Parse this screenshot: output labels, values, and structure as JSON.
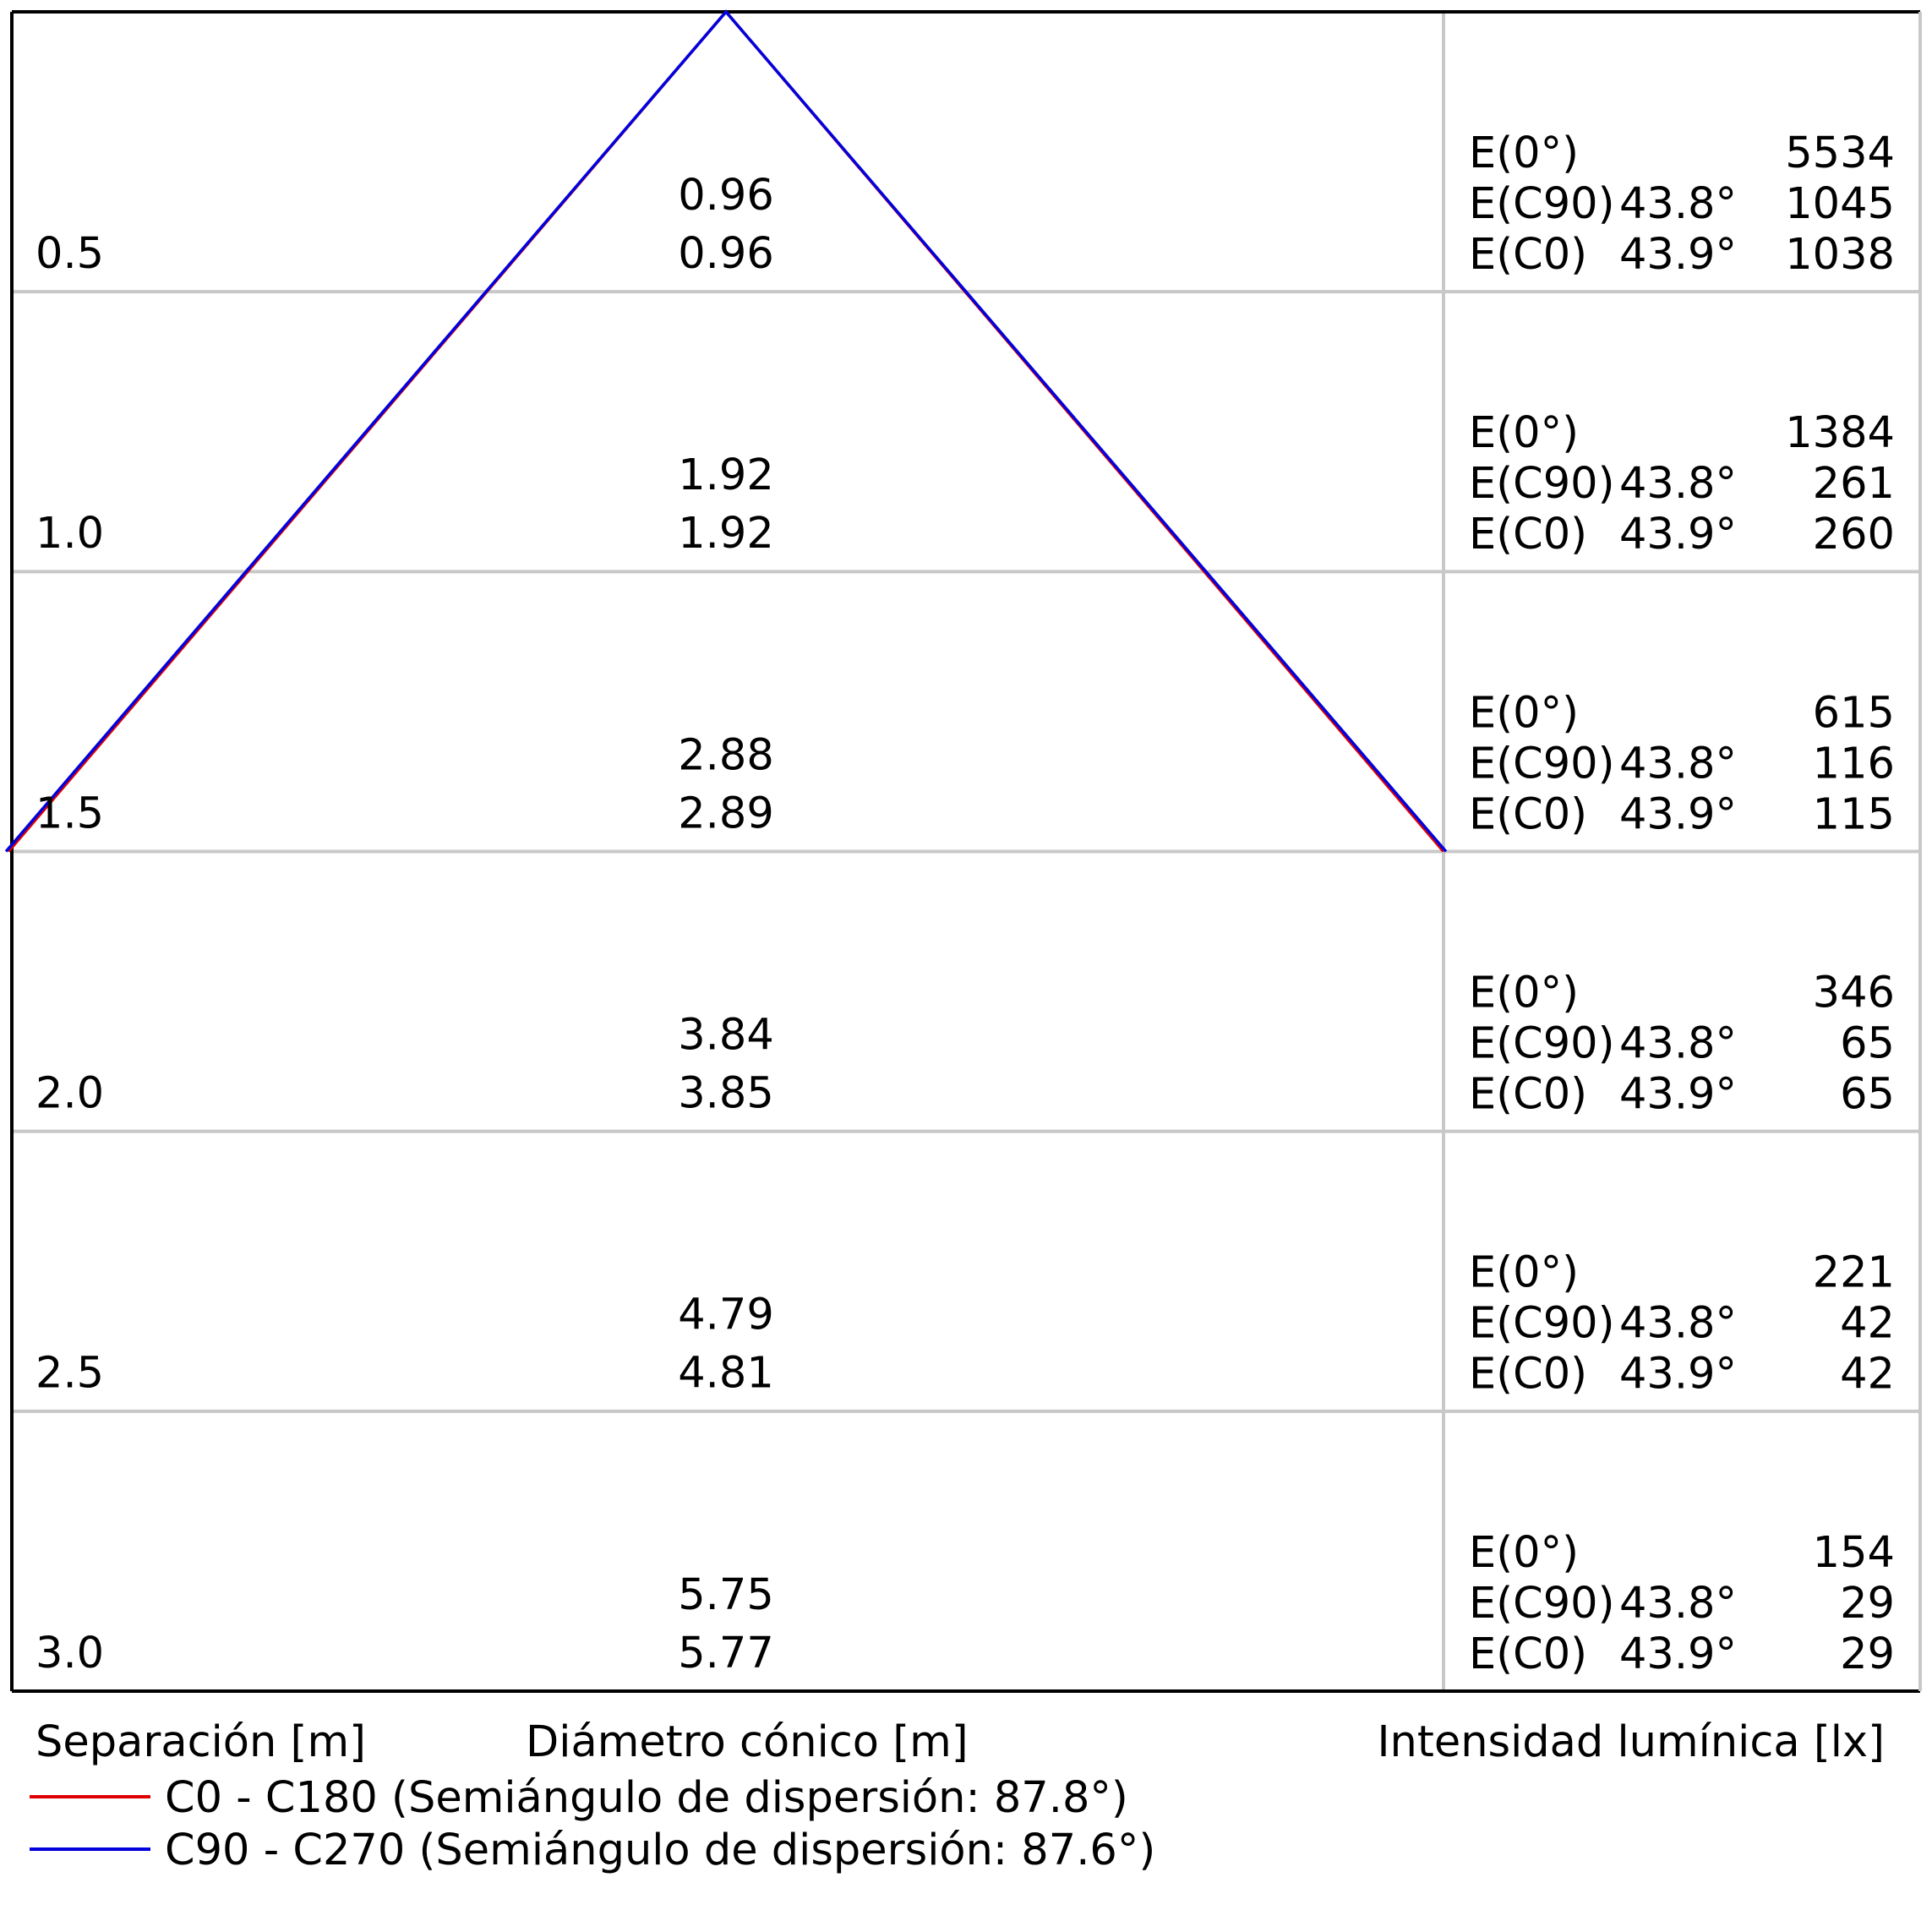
{
  "chart_data": {
    "type": "line",
    "title": "",
    "xlabel": "Diámetro cónico [m]",
    "ylabel": "Separación [m]",
    "right_label": "Intensidad lumínica [lx]",
    "grid": true,
    "rows": [
      {
        "separation": "0.5",
        "d_c0": "0.96",
        "d_c90": "0.96",
        "e0": "5534",
        "e_c90_angle": "43.8°",
        "e_c90": "1045",
        "e_c0_angle": "43.9°",
        "e_c0": "1038"
      },
      {
        "separation": "1.0",
        "d_c0": "1.92",
        "d_c90": "1.92",
        "e0": "1384",
        "e_c90_angle": "43.8°",
        "e_c90": "261",
        "e_c0_angle": "43.9°",
        "e_c0": "260"
      },
      {
        "separation": "1.5",
        "d_c0": "2.88",
        "d_c90": "2.89",
        "e0": "615",
        "e_c90_angle": "43.8°",
        "e_c90": "116",
        "e_c0_angle": "43.9°",
        "e_c0": "115"
      },
      {
        "separation": "2.0",
        "d_c0": "3.84",
        "d_c90": "3.85",
        "e0": "346",
        "e_c90_angle": "43.8°",
        "e_c90": "65",
        "e_c0_angle": "43.9°",
        "e_c0": "65"
      },
      {
        "separation": "2.5",
        "d_c0": "4.79",
        "d_c90": "4.81",
        "e0": "221",
        "e_c90_angle": "43.8°",
        "e_c90": "42",
        "e_c0_angle": "43.9°",
        "e_c0": "42"
      },
      {
        "separation": "3.0",
        "d_c0": "5.75",
        "d_c90": "5.77",
        "e0": "154",
        "e_c90_angle": "43.8°",
        "e_c90": "29",
        "e_c0_angle": "43.9°",
        "e_c0": "29"
      }
    ],
    "e_labels": {
      "e0": "E(0°)",
      "e_c90": "E(C90)",
      "e_c0": "E(C0)"
    },
    "series": [
      {
        "name": "C0 - C180 (Semiángulo de dispersión: 87.8°)",
        "color": "#e00000",
        "half_angle": 87.8,
        "points": [
          {
            "x": -1.44,
            "y": 1.5
          },
          {
            "x": 0,
            "y": 0
          },
          {
            "x": 1.44,
            "y": 1.5
          }
        ]
      },
      {
        "name": "C90 - C270 (Semiángulo de dispersión: 87.6°)",
        "color": "#0000dd",
        "half_angle": 87.6,
        "points": [
          {
            "x": -1.445,
            "y": 1.5
          },
          {
            "x": 0,
            "y": 0
          },
          {
            "x": 1.445,
            "y": 1.5
          }
        ]
      }
    ],
    "xlim": [
      -1.44,
      1.44
    ],
    "ylim": [
      0,
      3.0
    ],
    "colors": {
      "frame": "#000000",
      "grid": "#c8c8c8",
      "text": "#000000"
    }
  }
}
